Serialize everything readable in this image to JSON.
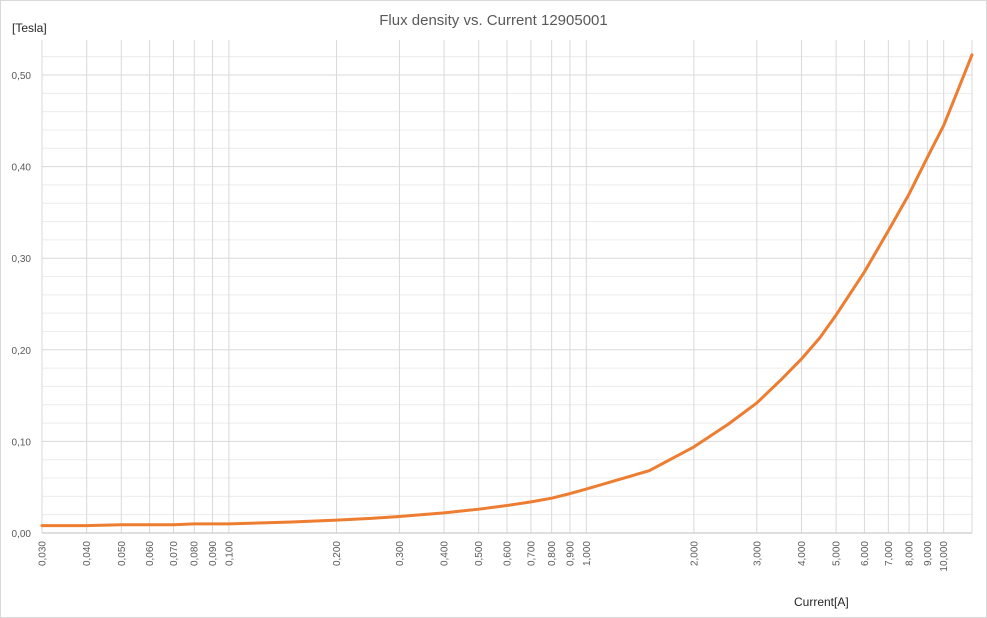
{
  "chart_data": {
    "type": "line",
    "title": "Flux density vs. Current 12905001",
    "ylabel": "[Tesla]",
    "xlabel": "Current[A]",
    "x_scale": "log",
    "xlim": [
      0.03,
      12
    ],
    "ylim": [
      0,
      0.56
    ],
    "grid": true,
    "line_color": "#ed7d31",
    "y_ticks": [
      {
        "value": 0,
        "label": "0,00"
      },
      {
        "value": 0.1,
        "label": "0,10"
      },
      {
        "value": 0.2,
        "label": "0,20"
      },
      {
        "value": 0.3,
        "label": "0,30"
      },
      {
        "value": 0.4,
        "label": "0,40"
      },
      {
        "value": 0.5,
        "label": "0,50"
      }
    ],
    "x_ticks": [
      {
        "value": 0.03,
        "label": "0,030"
      },
      {
        "value": 0.04,
        "label": "0,040"
      },
      {
        "value": 0.05,
        "label": "0,050"
      },
      {
        "value": 0.06,
        "label": "0,060"
      },
      {
        "value": 0.07,
        "label": "0,070"
      },
      {
        "value": 0.08,
        "label": "0,080"
      },
      {
        "value": 0.09,
        "label": "0,090"
      },
      {
        "value": 0.1,
        "label": "0,100"
      },
      {
        "value": 0.2,
        "label": "0,200"
      },
      {
        "value": 0.3,
        "label": "0,300"
      },
      {
        "value": 0.4,
        "label": "0,400"
      },
      {
        "value": 0.5,
        "label": "0,500"
      },
      {
        "value": 0.6,
        "label": "0,600"
      },
      {
        "value": 0.7,
        "label": "0,700"
      },
      {
        "value": 0.8,
        "label": "0,800"
      },
      {
        "value": 0.9,
        "label": "0,900"
      },
      {
        "value": 1,
        "label": "1,000"
      },
      {
        "value": 2,
        "label": "2,000"
      },
      {
        "value": 3,
        "label": "3,000"
      },
      {
        "value": 4,
        "label": "4,000"
      },
      {
        "value": 5,
        "label": "5,000"
      },
      {
        "value": 6,
        "label": "6,000"
      },
      {
        "value": 7,
        "label": "7,000"
      },
      {
        "value": 8,
        "label": "8,000"
      },
      {
        "value": 9,
        "label": "9,000"
      },
      {
        "value": 10,
        "label": "10,000"
      }
    ],
    "series": [
      {
        "x": [
          0.03,
          0.04,
          0.05,
          0.06,
          0.07,
          0.08,
          0.09,
          0.1,
          0.15,
          0.2,
          0.25,
          0.3,
          0.4,
          0.5,
          0.6,
          0.7,
          0.8,
          0.9,
          1.0,
          1.5,
          2.0,
          2.5,
          3.0,
          3.5,
          4.0,
          4.5,
          5.0,
          6.0,
          7.0,
          8.0,
          9.0,
          10.0,
          11.0,
          12.0
        ],
        "y": [
          0.008,
          0.008,
          0.009,
          0.009,
          0.009,
          0.01,
          0.01,
          0.01,
          0.012,
          0.014,
          0.016,
          0.018,
          0.022,
          0.026,
          0.03,
          0.034,
          0.038,
          0.043,
          0.048,
          0.068,
          0.094,
          0.119,
          0.142,
          0.167,
          0.19,
          0.213,
          0.238,
          0.285,
          0.33,
          0.37,
          0.41,
          0.445,
          0.485,
          0.522
        ]
      }
    ]
  }
}
